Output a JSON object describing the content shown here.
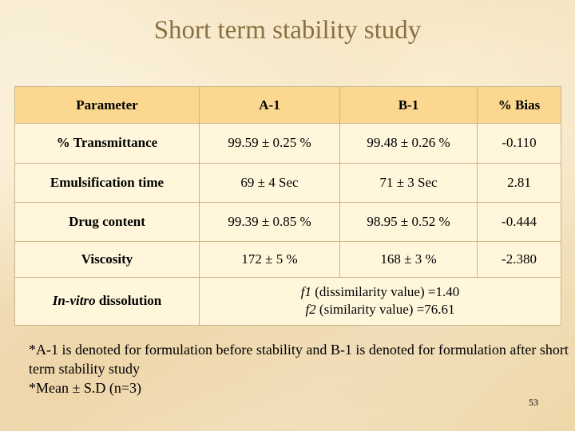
{
  "slide": {
    "title": "Short term stability study",
    "page_number": "53"
  },
  "table": {
    "headers": [
      "Parameter",
      "A-1",
      "B-1",
      "% Bias"
    ],
    "rows": [
      {
        "parameter": "% Transmittance",
        "a1": "99.59 ± 0.25 %",
        "b1": "99.48 ± 0.26 %",
        "bias": "-0.110"
      },
      {
        "parameter": "Emulsification time",
        "a1": "69 ± 4 Sec",
        "b1": "71 ± 3 Sec",
        "bias": "2.81"
      },
      {
        "parameter": "Drug content",
        "a1": "99.39 ± 0.85 %",
        "b1": "98.95 ± 0.52 %",
        "bias": "-0.444"
      },
      {
        "parameter": "Viscosity",
        "a1": "172 ± 5 %",
        "b1": "168 ± 3 %",
        "bias": "-2.380"
      }
    ],
    "dissolution": {
      "parameter_italic": "In-vitro",
      "parameter_rest": " dissolution",
      "f1_symbol": "f1",
      "f1_text": " (dissimilarity value) =1.40",
      "f2_symbol": "f2",
      "f2_text": " (similarity value) =76.61"
    }
  },
  "footnotes": [
    "*A-1 is denoted for formulation before stability and B-1 is denoted for formulation after short term stability study",
    "*Mean ± S.D (n=3)"
  ]
}
